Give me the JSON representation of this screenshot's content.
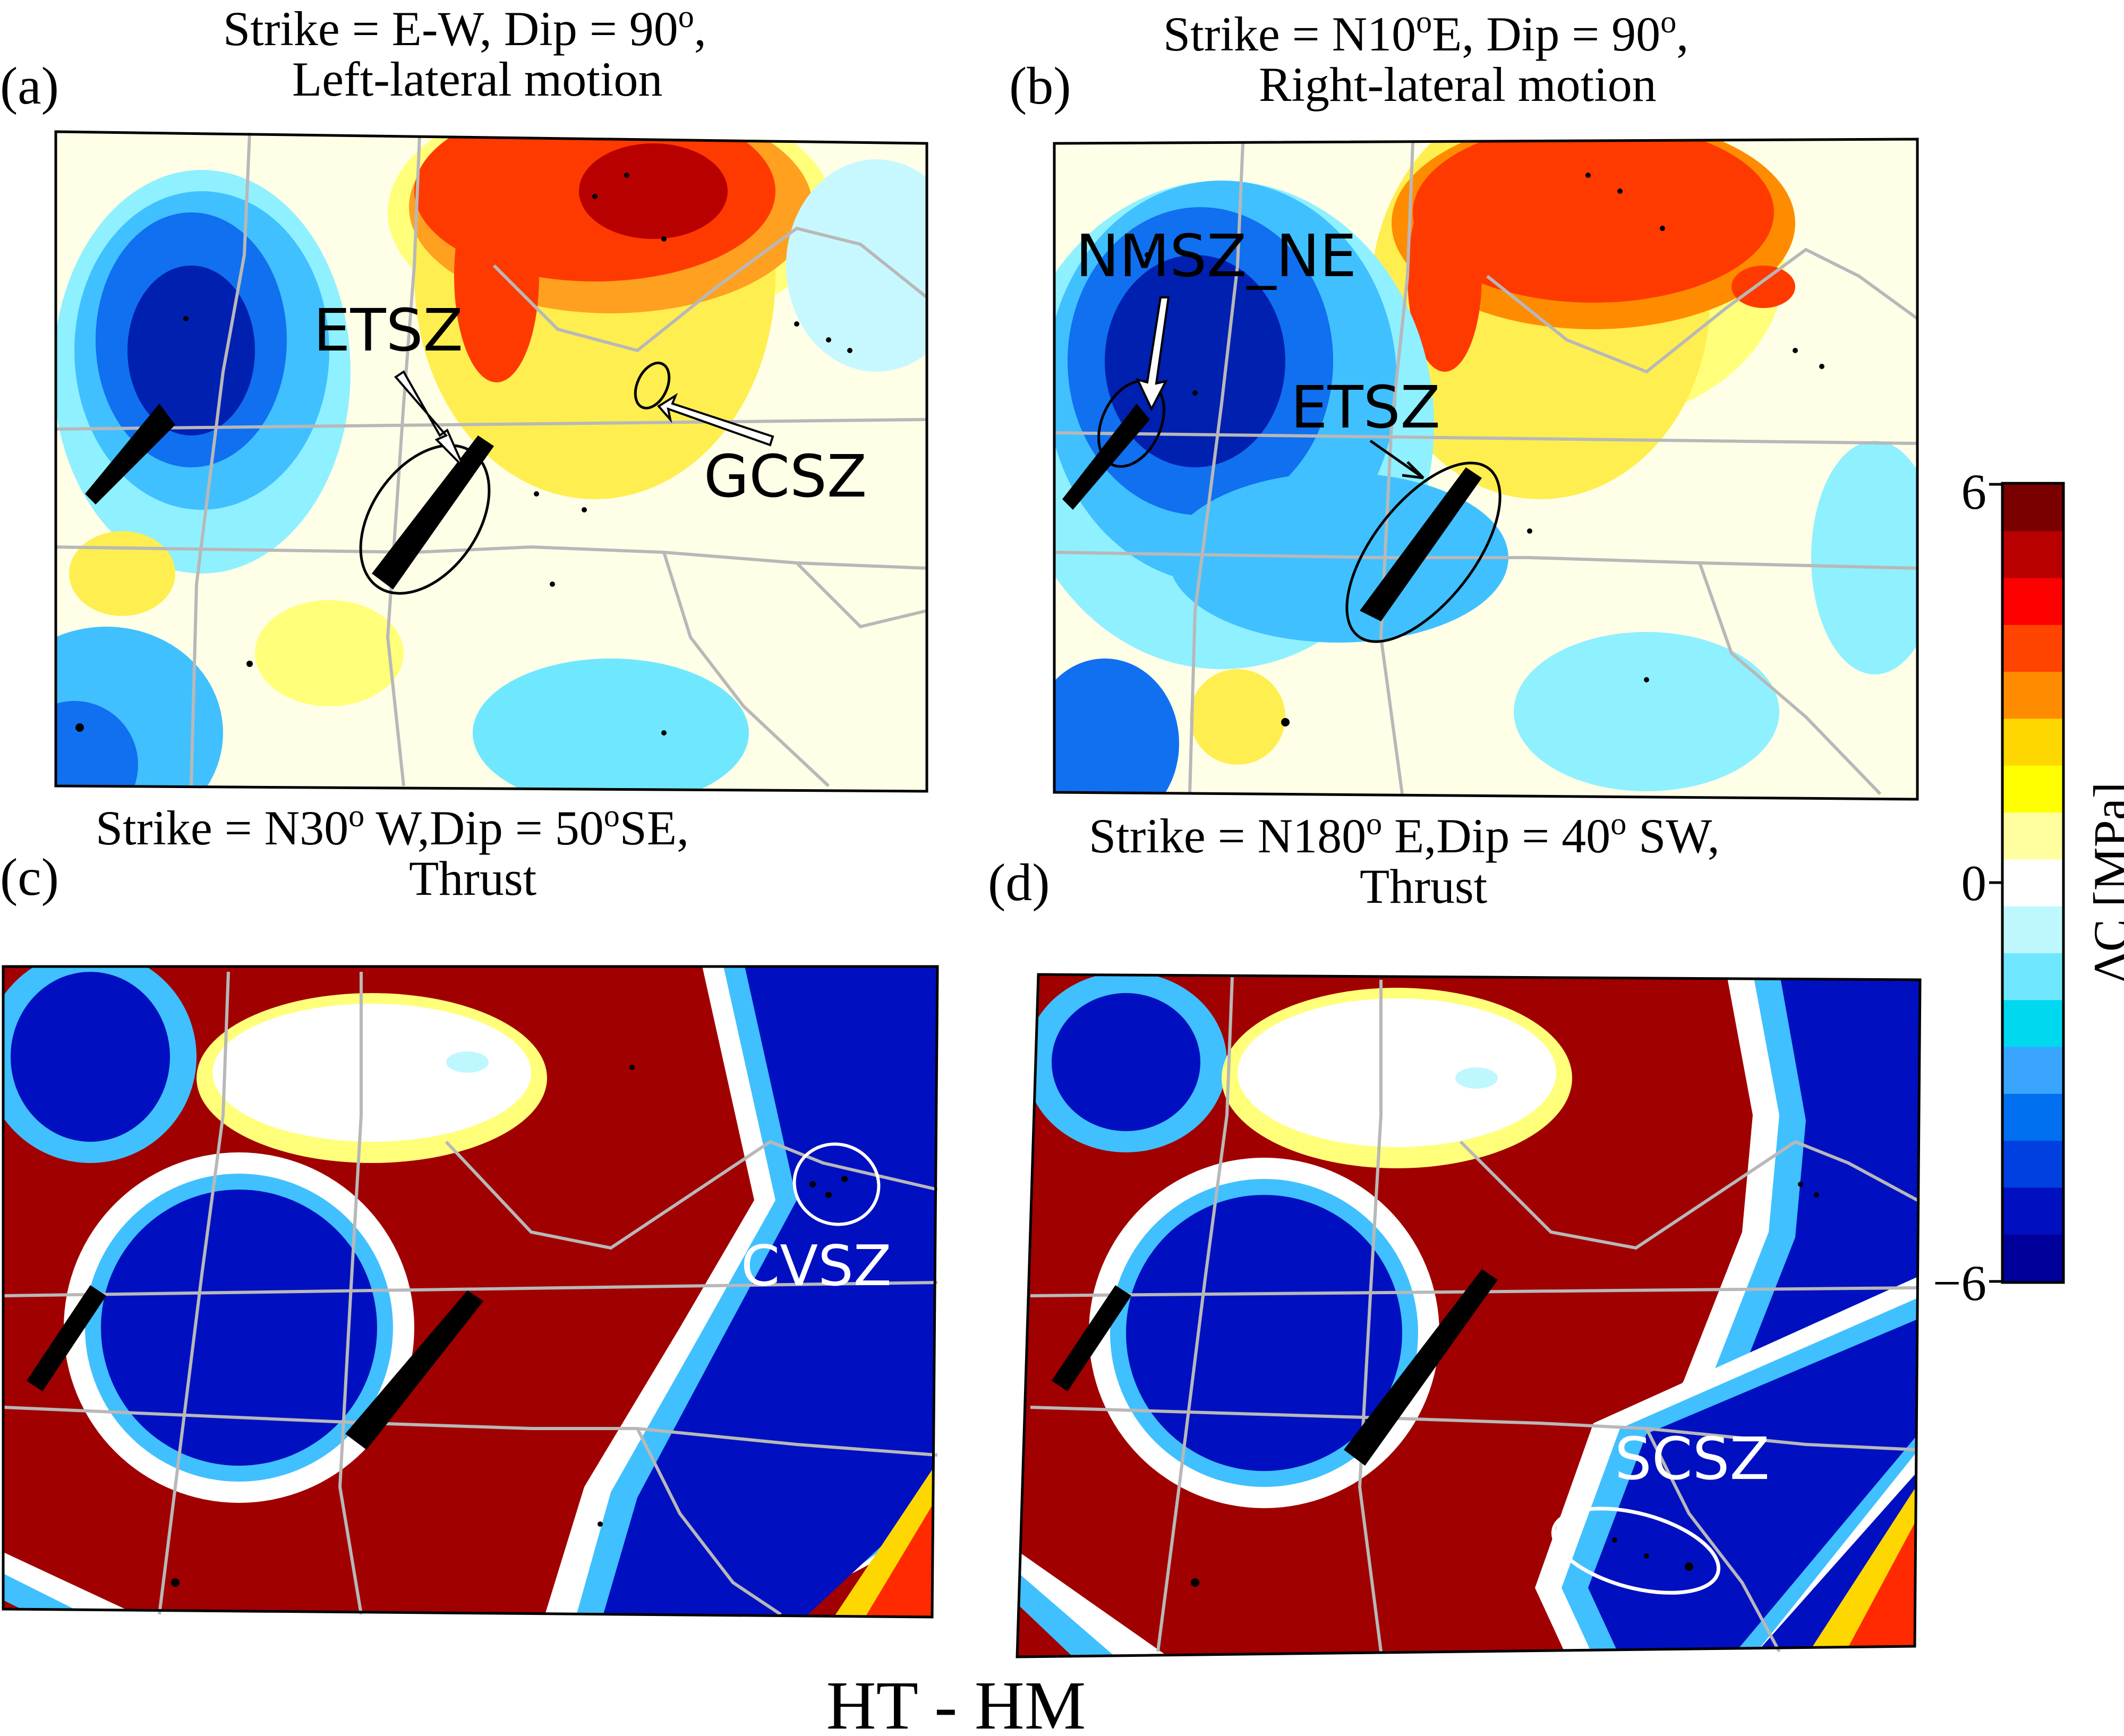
{
  "figure_title": "HT - HM",
  "panels": [
    {
      "tag": "(a)",
      "title_line1": "Strike = E-W, Dip = 90",
      "title_sup1": "o",
      "title_tail1": ",",
      "title_line2": "Left-lateral motion",
      "labels": [
        "ETSZ",
        "GCSZ"
      ]
    },
    {
      "tag": "(b)",
      "title_line1a": "Strike = N10",
      "title_sup1": "o",
      "title_line1b": "E, Dip = 90",
      "title_sup2": "o",
      "title_tail1": ",",
      "title_line2": "Right-lateral motion",
      "labels": [
        "NMSZ_NE",
        "ETSZ"
      ]
    },
    {
      "tag": "(c)",
      "title_line1a": "Strike = N30",
      "title_sup1": "o",
      "title_line1b": " W,Dip = 50",
      "title_sup2": "o",
      "title_line1c": "SE,",
      "title_line2": "Thrust",
      "labels": [
        "CVSZ"
      ]
    },
    {
      "tag": "(d)",
      "title_line1a": "Strike = N180",
      "title_sup1": "o",
      "title_line1b": " E,Dip = 40",
      "title_sup2": "o",
      "title_line1c": " SW,",
      "title_line2": "Thrust",
      "labels": [
        "SCSZ"
      ]
    }
  ],
  "colorbar": {
    "label": "ΔC [MPa]",
    "ticks": [
      "6",
      "0",
      "−6"
    ],
    "colors_top_to_bottom": [
      "#7a0000",
      "#b80000",
      "#ff0000",
      "#ff4400",
      "#ff8c00",
      "#ffd700",
      "#ffff00",
      "#ffffa0",
      "#ffffff",
      "#bff7ff",
      "#6fe8ff",
      "#00d8f0",
      "#3aa5ff",
      "#0070f0",
      "#0040e0",
      "#0010c0",
      "#00009a"
    ],
    "range": [
      -6,
      6
    ]
  }
}
